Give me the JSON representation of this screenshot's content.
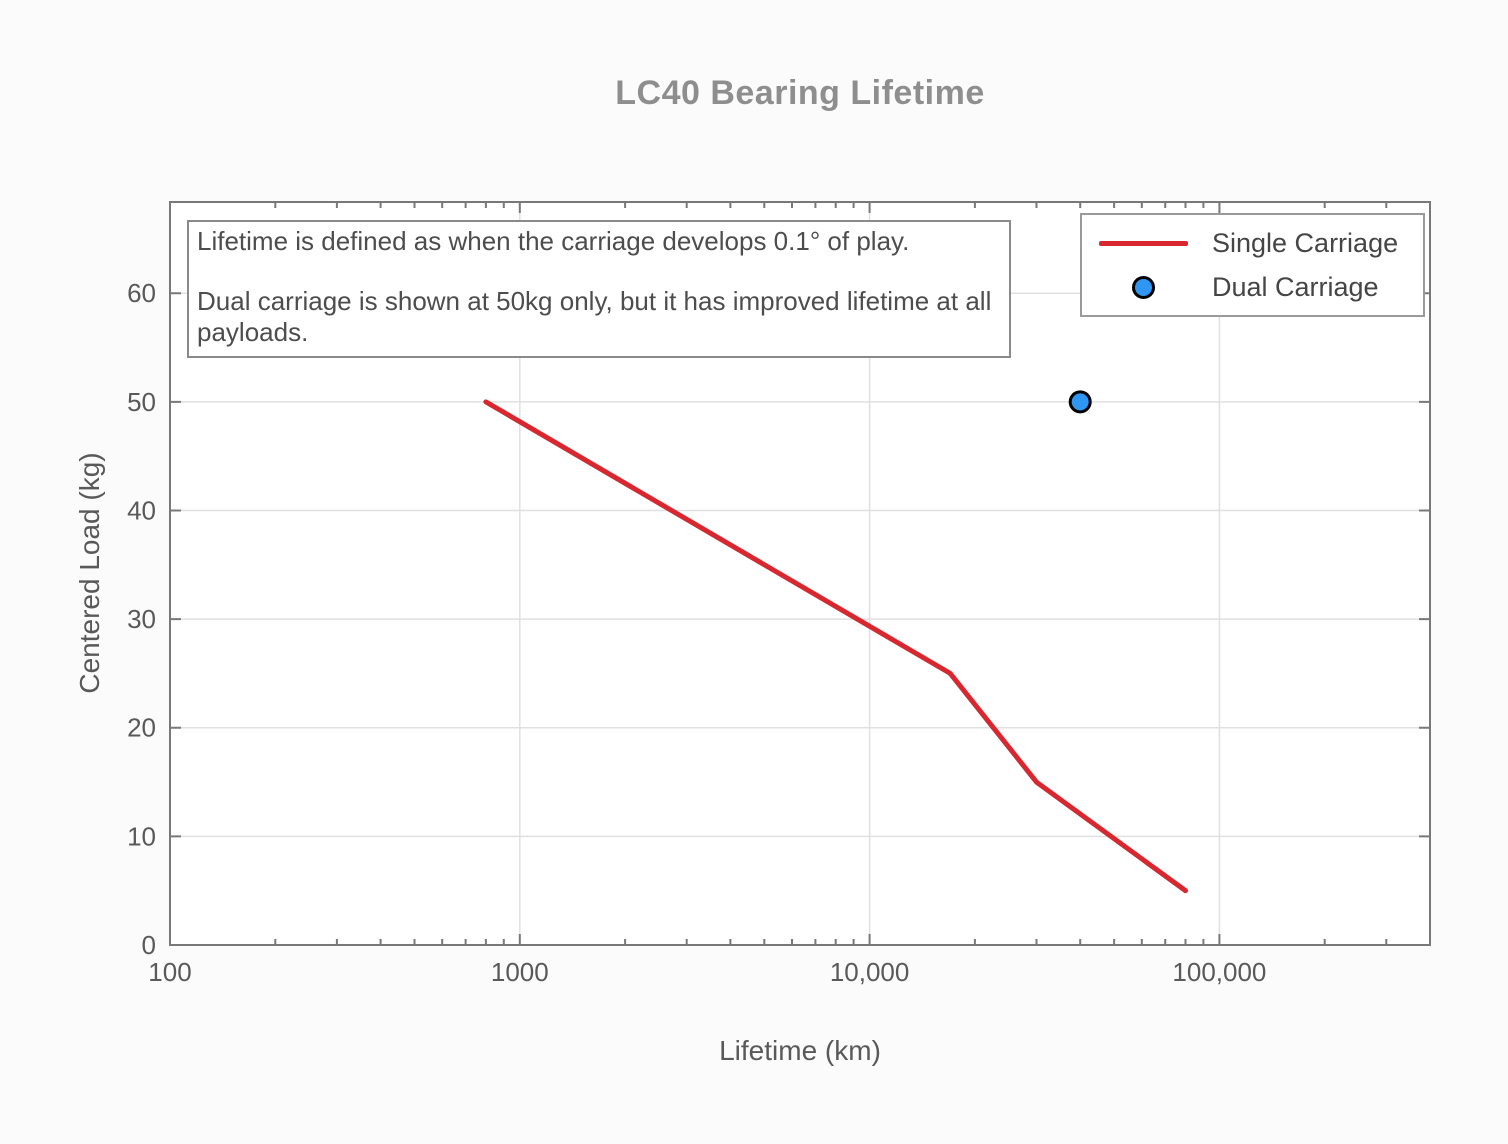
{
  "chart_data": {
    "type": "line",
    "title": "LC40 Bearing Lifetime",
    "xlabel": "Lifetime (km)",
    "ylabel": "Centered Load (kg)",
    "x_scale": "log",
    "xlim": [
      100,
      400000
    ],
    "ylim": [
      0,
      68.4
    ],
    "grid": true,
    "xticks": {
      "major": [
        100,
        1000,
        10000,
        100000
      ],
      "labels": [
        "100",
        "1000",
        "10,000",
        "100,000"
      ]
    },
    "yticks": [
      0,
      10,
      20,
      30,
      40,
      50,
      60
    ],
    "series": [
      {
        "name": "Single Carriage",
        "type": "line",
        "color": "#d8272e",
        "points": [
          [
            800,
            50
          ],
          [
            17000,
            25
          ],
          [
            30000,
            15
          ],
          [
            80000,
            5
          ]
        ]
      },
      {
        "name": "Dual Carriage",
        "type": "scatter",
        "color": "#2f96f3",
        "edge_color": "#000000",
        "points": [
          [
            40000,
            50
          ]
        ]
      }
    ],
    "legend": {
      "position": "upper right"
    },
    "annotation": {
      "text1": "Lifetime is defined as when the carriage develops 0.1° of play.",
      "text2": "Dual carriage is shown at 50kg only, but it has improved lifetime at all payloads."
    },
    "colors": {
      "title": "#8e8e8e",
      "axis_text": "#595959",
      "spine": "#787878",
      "grid": "#e0e0e0",
      "background": "#fbfbfb",
      "plot_background": "#ffffff"
    }
  }
}
